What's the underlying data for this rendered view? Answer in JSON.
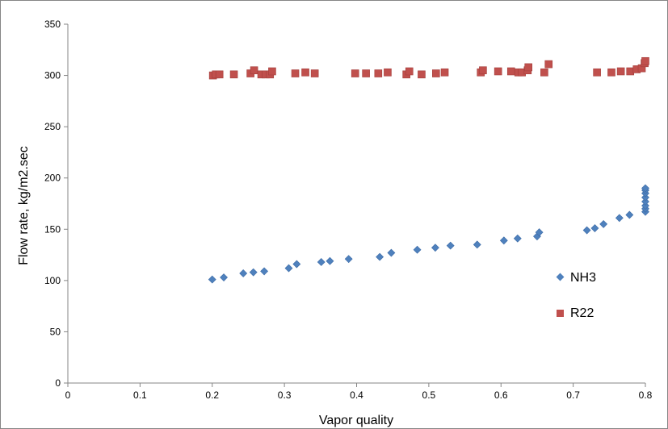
{
  "chart_data": {
    "type": "scatter",
    "title": "",
    "xlabel": "Vapor quality",
    "ylabel": "Flow rate, kg/m2.sec",
    "xlim": [
      0,
      0.8
    ],
    "ylim": [
      0,
      350
    ],
    "x_ticks": [
      "0",
      "0.1",
      "0.2",
      "0.3",
      "0.4",
      "0.5",
      "0.6",
      "0.7",
      "0.8"
    ],
    "y_ticks": [
      "0",
      "50",
      "100",
      "150",
      "200",
      "250",
      "300",
      "350"
    ],
    "grid": false,
    "legend_position": "right",
    "series": [
      {
        "name": "NH3",
        "marker": "diamond",
        "color": "#4F81BD",
        "points": [
          [
            0.2,
            101
          ],
          [
            0.216,
            103
          ],
          [
            0.243,
            107
          ],
          [
            0.257,
            108
          ],
          [
            0.272,
            109
          ],
          [
            0.306,
            112
          ],
          [
            0.317,
            116
          ],
          [
            0.351,
            118
          ],
          [
            0.363,
            119
          ],
          [
            0.389,
            121
          ],
          [
            0.432,
            123
          ],
          [
            0.448,
            127
          ],
          [
            0.484,
            130
          ],
          [
            0.509,
            132
          ],
          [
            0.53,
            134
          ],
          [
            0.567,
            135
          ],
          [
            0.604,
            139
          ],
          [
            0.623,
            141
          ],
          [
            0.65,
            143
          ],
          [
            0.653,
            147
          ],
          [
            0.719,
            149
          ],
          [
            0.73,
            151
          ],
          [
            0.742,
            155
          ],
          [
            0.764,
            161
          ],
          [
            0.778,
            164
          ],
          [
            0.8,
            167
          ],
          [
            0.8,
            170
          ],
          [
            0.8,
            173
          ],
          [
            0.8,
            177
          ],
          [
            0.8,
            181
          ],
          [
            0.8,
            185
          ],
          [
            0.8,
            188
          ],
          [
            0.8,
            190
          ]
        ]
      },
      {
        "name": "R22",
        "marker": "square",
        "color": "#C0504D",
        "points": [
          [
            0.201,
            300
          ],
          [
            0.205,
            301
          ],
          [
            0.21,
            301
          ],
          [
            0.23,
            301
          ],
          [
            0.253,
            302
          ],
          [
            0.258,
            305
          ],
          [
            0.268,
            301
          ],
          [
            0.274,
            301
          ],
          [
            0.28,
            301
          ],
          [
            0.283,
            304
          ],
          [
            0.315,
            302
          ],
          [
            0.329,
            303
          ],
          [
            0.342,
            302
          ],
          [
            0.398,
            302
          ],
          [
            0.413,
            302
          ],
          [
            0.43,
            302
          ],
          [
            0.443,
            303
          ],
          [
            0.469,
            301
          ],
          [
            0.473,
            304
          ],
          [
            0.49,
            301
          ],
          [
            0.51,
            302
          ],
          [
            0.522,
            303
          ],
          [
            0.572,
            303
          ],
          [
            0.575,
            305
          ],
          [
            0.596,
            304
          ],
          [
            0.614,
            304
          ],
          [
            0.624,
            303
          ],
          [
            0.629,
            303
          ],
          [
            0.637,
            305
          ],
          [
            0.638,
            308
          ],
          [
            0.66,
            303
          ],
          [
            0.666,
            311
          ],
          [
            0.733,
            303
          ],
          [
            0.753,
            303
          ],
          [
            0.766,
            304
          ],
          [
            0.779,
            304
          ],
          [
            0.788,
            306
          ],
          [
            0.795,
            307
          ],
          [
            0.799,
            312
          ],
          [
            0.8,
            314
          ]
        ]
      }
    ]
  }
}
